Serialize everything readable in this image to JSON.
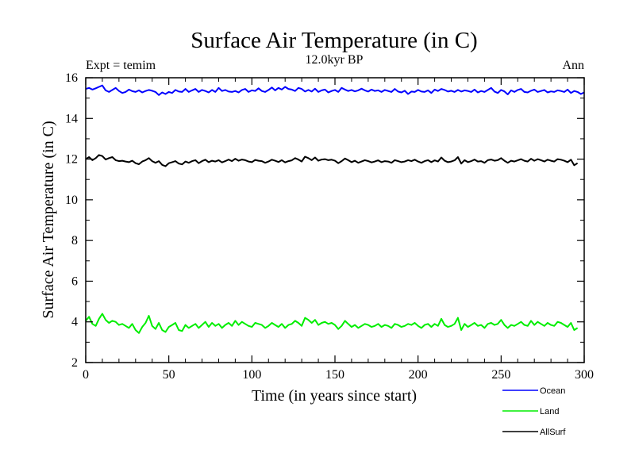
{
  "chart_data": {
    "type": "line",
    "title": "Surface Air Temperature (in C)",
    "subtitle": "12.0kyr BP",
    "annotation_left": "Expt = temim",
    "annotation_right": "Ann",
    "xlabel": "Time (in years since start)",
    "ylabel": "Surface Air Temperature (in C)",
    "xlim": [
      0,
      300
    ],
    "ylim": [
      2,
      16
    ],
    "xticks": [
      0,
      50,
      100,
      150,
      200,
      250,
      300
    ],
    "yticks": [
      2,
      4,
      6,
      8,
      10,
      12,
      14,
      16
    ],
    "legend_position": "bottom-right, outside plot",
    "series": [
      {
        "name": "Ocean",
        "color": "#0000ff",
        "x_start": 0,
        "x_step": 2,
        "values": [
          15.45,
          15.5,
          15.42,
          15.48,
          15.55,
          15.62,
          15.38,
          15.3,
          15.4,
          15.5,
          15.35,
          15.25,
          15.3,
          15.42,
          15.34,
          15.3,
          15.38,
          15.28,
          15.35,
          15.4,
          15.36,
          15.3,
          15.15,
          15.28,
          15.2,
          15.3,
          15.25,
          15.4,
          15.32,
          15.3,
          15.45,
          15.3,
          15.38,
          15.45,
          15.3,
          15.4,
          15.35,
          15.28,
          15.4,
          15.3,
          15.5,
          15.35,
          15.4,
          15.32,
          15.3,
          15.35,
          15.28,
          15.4,
          15.45,
          15.3,
          15.38,
          15.35,
          15.48,
          15.35,
          15.3,
          15.4,
          15.52,
          15.38,
          15.5,
          15.42,
          15.55,
          15.45,
          15.42,
          15.35,
          15.5,
          15.45,
          15.32,
          15.4,
          15.32,
          15.46,
          15.3,
          15.38,
          15.42,
          15.28,
          15.35,
          15.4,
          15.3,
          15.5,
          15.42,
          15.35,
          15.4,
          15.33,
          15.38,
          15.46,
          15.38,
          15.32,
          15.42,
          15.35,
          15.38,
          15.3,
          15.4,
          15.35,
          15.3,
          15.45,
          15.32,
          15.28,
          15.36,
          15.2,
          15.32,
          15.3,
          15.4,
          15.32,
          15.3,
          15.38,
          15.25,
          15.42,
          15.35,
          15.45,
          15.4,
          15.32,
          15.36,
          15.3,
          15.4,
          15.32,
          15.38,
          15.35,
          15.3,
          15.42,
          15.28,
          15.35,
          15.3,
          15.4,
          15.5,
          15.32,
          15.25,
          15.4,
          15.33,
          15.18,
          15.38,
          15.3,
          15.4,
          15.45,
          15.3,
          15.28,
          15.36,
          15.42,
          15.3,
          15.35,
          15.4,
          15.28,
          15.33,
          15.3,
          15.38,
          15.35,
          15.3,
          15.42,
          15.25,
          15.35,
          15.3,
          15.2,
          15.28
        ]
      },
      {
        "name": "Land",
        "color": "#00ee00",
        "x_start": 0,
        "x_step": 2,
        "values": [
          4.05,
          4.25,
          3.9,
          3.8,
          4.15,
          4.4,
          4.1,
          3.95,
          4.05,
          4.0,
          3.85,
          3.9,
          3.8,
          3.7,
          3.9,
          3.6,
          3.45,
          3.75,
          3.95,
          4.3,
          3.8,
          3.65,
          3.95,
          3.6,
          3.5,
          3.75,
          3.85,
          3.95,
          3.6,
          3.55,
          3.85,
          3.7,
          3.8,
          3.9,
          3.7,
          3.85,
          4.0,
          3.75,
          3.95,
          3.8,
          3.9,
          3.7,
          3.85,
          3.95,
          3.8,
          4.05,
          3.85,
          4.0,
          3.9,
          3.8,
          3.75,
          3.95,
          3.9,
          3.85,
          3.7,
          3.8,
          3.95,
          3.85,
          3.75,
          3.9,
          3.7,
          3.85,
          3.9,
          4.05,
          3.95,
          3.8,
          4.2,
          4.1,
          3.95,
          4.1,
          3.85,
          3.95,
          4.0,
          3.9,
          3.95,
          3.85,
          3.65,
          3.8,
          4.05,
          3.9,
          3.75,
          3.85,
          3.7,
          3.8,
          3.9,
          3.85,
          3.75,
          3.8,
          3.9,
          3.75,
          3.85,
          3.8,
          3.7,
          3.9,
          3.85,
          3.75,
          3.8,
          3.9,
          3.85,
          3.95,
          3.8,
          3.7,
          3.85,
          3.9,
          3.75,
          3.9,
          3.8,
          4.15,
          3.85,
          3.75,
          3.8,
          3.9,
          4.2,
          3.6,
          3.9,
          3.75,
          3.85,
          3.95,
          3.8,
          3.85,
          3.7,
          3.9,
          3.95,
          3.85,
          3.9,
          4.1,
          3.85,
          3.7,
          3.85,
          3.8,
          3.9,
          4.0,
          3.85,
          3.8,
          4.05,
          3.85,
          4.0,
          3.9,
          3.8,
          3.95,
          3.85,
          3.8,
          4.0,
          3.95,
          3.85,
          3.75,
          3.95,
          3.6,
          3.7
        ]
      },
      {
        "name": "AllSurf",
        "color": "#000000",
        "x_start": 0,
        "x_step": 2,
        "values": [
          12.0,
          12.1,
          11.95,
          12.05,
          12.2,
          12.15,
          11.98,
          12.05,
          12.1,
          11.95,
          11.9,
          11.92,
          11.88,
          11.85,
          11.92,
          11.8,
          11.75,
          11.88,
          11.95,
          12.05,
          11.9,
          11.82,
          11.9,
          11.72,
          11.65,
          11.8,
          11.85,
          11.9,
          11.78,
          11.74,
          11.88,
          11.82,
          11.9,
          11.95,
          11.8,
          11.9,
          11.97,
          11.85,
          11.92,
          11.88,
          11.95,
          11.84,
          11.9,
          11.98,
          11.9,
          12.02,
          11.92,
          11.98,
          11.95,
          11.88,
          11.85,
          11.96,
          11.92,
          11.9,
          11.82,
          11.88,
          11.97,
          11.92,
          11.86,
          11.95,
          11.84,
          11.9,
          11.94,
          12.05,
          11.98,
          11.88,
          12.12,
          12.05,
          11.95,
          12.08,
          11.92,
          11.98,
          12.0,
          11.95,
          11.97,
          11.92,
          11.8,
          11.9,
          12.03,
          11.95,
          11.85,
          11.92,
          11.82,
          11.88,
          11.95,
          11.9,
          11.84,
          11.88,
          11.94,
          11.85,
          11.9,
          11.88,
          11.82,
          11.95,
          11.9,
          11.85,
          11.88,
          11.95,
          11.9,
          11.97,
          11.88,
          11.82,
          11.9,
          11.95,
          11.85,
          11.94,
          11.88,
          12.08,
          11.92,
          11.85,
          11.88,
          11.94,
          12.1,
          11.78,
          11.95,
          11.85,
          11.9,
          11.98,
          11.88,
          11.9,
          11.82,
          11.95,
          11.98,
          11.92,
          11.95,
          12.05,
          11.92,
          11.82,
          11.92,
          11.88,
          11.94,
          12.0,
          11.92,
          11.88,
          12.02,
          11.92,
          12.0,
          11.95,
          11.88,
          11.97,
          11.92,
          11.88,
          12.0,
          11.97,
          11.92,
          11.85,
          11.97,
          11.7,
          11.8
        ]
      }
    ]
  }
}
